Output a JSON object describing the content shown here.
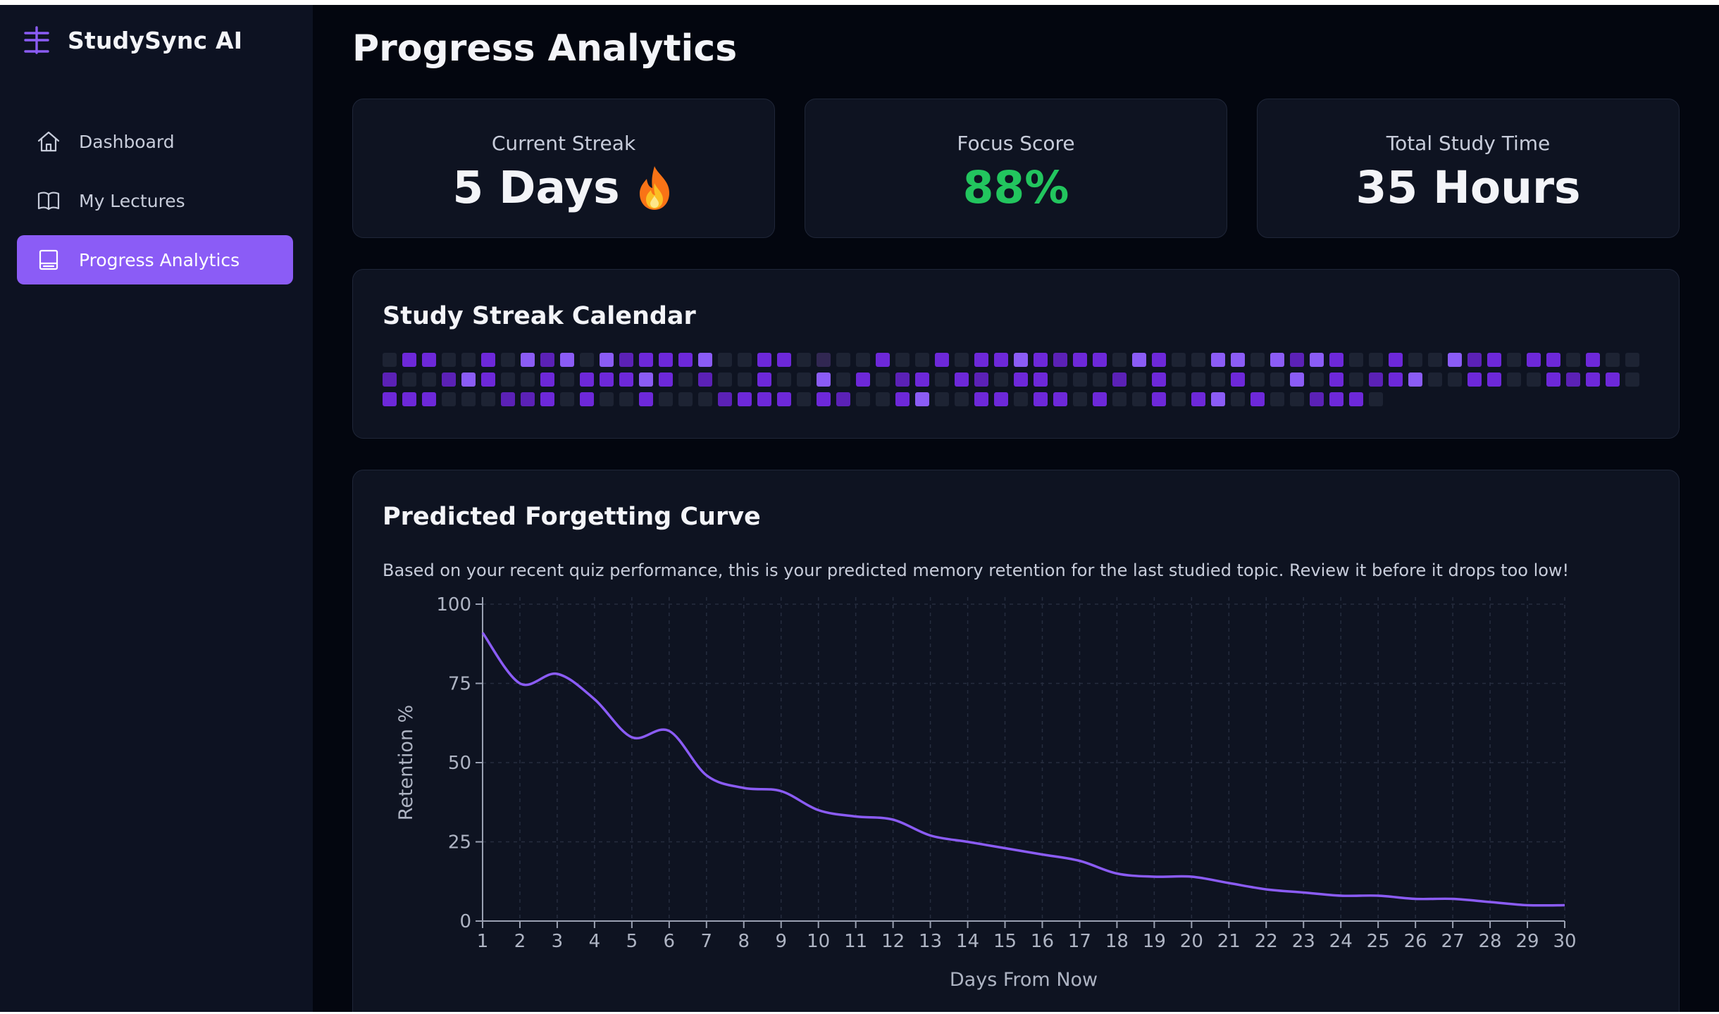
{
  "app": {
    "name": "StudySync AI"
  },
  "sidebar": {
    "items": [
      {
        "label": "Dashboard",
        "icon": "home-icon",
        "active": false
      },
      {
        "label": "My Lectures",
        "icon": "book-icon",
        "active": false
      },
      {
        "label": "Progress Analytics",
        "icon": "analytics-icon",
        "active": true
      }
    ]
  },
  "page": {
    "title": "Progress Analytics"
  },
  "stats": {
    "streak": {
      "label": "Current Streak",
      "value": "5 Days",
      "icon": "fire-icon"
    },
    "focus": {
      "label": "Focus Score",
      "value": "88%"
    },
    "time": {
      "label": "Total Study Time",
      "value": "35 Hours"
    }
  },
  "calendar": {
    "title": "Study Streak Calendar",
    "levels": [
      0,
      3,
      3,
      0,
      0,
      3,
      0,
      4,
      2,
      4,
      0,
      4,
      2,
      3,
      3,
      3,
      4,
      0,
      0,
      3,
      3,
      0,
      1,
      0,
      0,
      3,
      0,
      0,
      3,
      0,
      3,
      3,
      4,
      3,
      2,
      3,
      3,
      0,
      4,
      3,
      0,
      0,
      4,
      4,
      0,
      4,
      2,
      4,
      3,
      0,
      0,
      3,
      0,
      0,
      4,
      2,
      3,
      0,
      3,
      3,
      0,
      3,
      0,
      0,
      2,
      0,
      0,
      2,
      4,
      3,
      0,
      0,
      3,
      0,
      3,
      3,
      3,
      4,
      3,
      0,
      2,
      0,
      0,
      3,
      0,
      0,
      4,
      0,
      3,
      0,
      2,
      3,
      0,
      3,
      2,
      0,
      3,
      3,
      0,
      0,
      0,
      2,
      0,
      3,
      0,
      0,
      0,
      3,
      0,
      0,
      4,
      0,
      3,
      0,
      2,
      3,
      4,
      0,
      0,
      3,
      3,
      0,
      0,
      3,
      2,
      3,
      3,
      0,
      3,
      3,
      3,
      0,
      0,
      0,
      2,
      2,
      3,
      0,
      3,
      0,
      0,
      3,
      0,
      0,
      0,
      2,
      3,
      3,
      3,
      0,
      3,
      2,
      0,
      0,
      3,
      4,
      0,
      0,
      3,
      3,
      0,
      3,
      3,
      0,
      3,
      0,
      0,
      3,
      0,
      3,
      4,
      0,
      3,
      0,
      0,
      2,
      3,
      3,
      0
    ],
    "colors": [
      "#1d2333",
      "#312752",
      "#5b21b6",
      "#6d28d9",
      "#8b5cf6"
    ]
  },
  "forgetting": {
    "title": "Predicted Forgetting Curve",
    "description": "Based on your recent quiz performance, this is your predicted memory retention for the last studied topic. Review it before it drops too low!"
  },
  "chart_data": {
    "type": "line",
    "xlabel": "Days From Now",
    "ylabel": "Retention %",
    "ylim": [
      0,
      100
    ],
    "yticks": [
      0,
      25,
      50,
      75,
      100
    ],
    "x": [
      1,
      2,
      3,
      4,
      5,
      6,
      7,
      8,
      9,
      10,
      11,
      12,
      13,
      14,
      15,
      16,
      17,
      18,
      19,
      20,
      21,
      22,
      23,
      24,
      25,
      26,
      27,
      28,
      29,
      30
    ],
    "series": [
      {
        "color": "#8b5cf6",
        "values": [
          91,
          75,
          78,
          70,
          58,
          60,
          46,
          42,
          41,
          35,
          33,
          32,
          27,
          25,
          23,
          21,
          19,
          15,
          14,
          14,
          12,
          10,
          9,
          8,
          8,
          7,
          7,
          6,
          5,
          5
        ]
      }
    ],
    "grid": true
  }
}
